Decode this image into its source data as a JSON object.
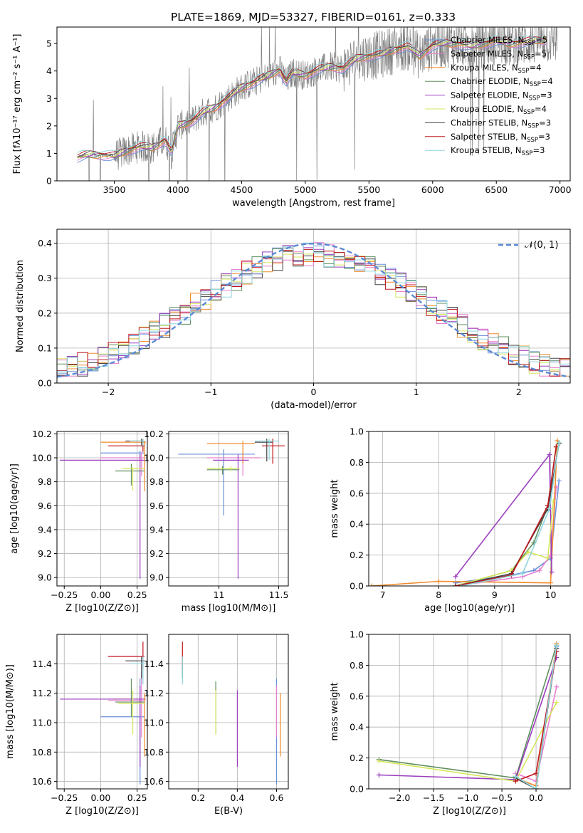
{
  "title": "PLATE=1869, MJD=53327, FIBERID=0161, z=0.333",
  "colors": {
    "chabrier_miles": "#6a8fd8",
    "salpeter_miles": "#e87fcf",
    "kroupa_miles": "#f08a2a",
    "chabrier_elodie": "#5f8f5f",
    "salpeter_elodie": "#9b3fbf",
    "kroupa_elodie": "#d6e65c",
    "chabrier_stelib": "#444444",
    "salpeter_stelib": "#c0161c",
    "kroupa_stelib": "#8fd6e0",
    "normal": "#5b8ad4",
    "data": "#808080"
  },
  "legend": {
    "spectrum": [
      {
        "key": "chabrier_miles",
        "label": "Chabrier MILES, N",
        "sub": "SSP",
        "suffix": "=5"
      },
      {
        "key": "salpeter_miles",
        "label": "Salpeter MILES, N",
        "sub": "SSP",
        "suffix": "=5"
      },
      {
        "key": "kroupa_miles",
        "label": "Kroupa MILES, N",
        "sub": "SSP",
        "suffix": "=4"
      },
      {
        "key": "chabrier_elodie",
        "label": "Chabrier ELODIE, N",
        "sub": "SSP",
        "suffix": "=4"
      },
      {
        "key": "salpeter_elodie",
        "label": "Salpeter ELODIE, N",
        "sub": "SSP",
        "suffix": "=3"
      },
      {
        "key": "kroupa_elodie",
        "label": "Kroupa ELODIE, N",
        "sub": "SSP",
        "suffix": "=4"
      },
      {
        "key": "chabrier_stelib",
        "label": "Chabrier STELIB, N",
        "sub": "SSP",
        "suffix": "=3"
      },
      {
        "key": "salpeter_stelib",
        "label": "Salpeter STELIB, N",
        "sub": "SSP",
        "suffix": "=3"
      },
      {
        "key": "kroupa_stelib",
        "label": "Kroupa STELIB, N",
        "sub": "SSP",
        "suffix": "=3"
      }
    ],
    "normal": "𝒩(0, 1)"
  },
  "chart_data": [
    {
      "type": "line",
      "panel": "spectrum",
      "xlabel": "wavelength [Angstrom, rest frame]",
      "ylabel": "Flux [fλ10⁻¹⁷ erg cm⁻² s⁻¹ A⁻¹]",
      "xlim": [
        3050,
        7080
      ],
      "ylim": [
        0,
        5.6
      ],
      "xticks": [
        3500,
        4000,
        4500,
        5000,
        5500,
        6000,
        6500,
        7000
      ],
      "yticks": [
        0,
        1,
        2,
        3,
        4,
        5
      ],
      "model_x": [
        3200,
        3300,
        3400,
        3500,
        3600,
        3700,
        3800,
        3900,
        3950,
        4000,
        4100,
        4200,
        4300,
        4400,
        4500,
        4600,
        4700,
        4800,
        4850,
        4900,
        5000,
        5100,
        5200,
        5300,
        5400,
        5500,
        5600,
        5700,
        5800,
        5900,
        6000,
        6100,
        6200,
        6300,
        6400,
        6500,
        6600,
        6700,
        6800,
        6900
      ],
      "model_y": [
        0.85,
        0.95,
        0.95,
        0.9,
        1.1,
        1.25,
        1.2,
        1.5,
        1.0,
        2.0,
        2.15,
        2.5,
        2.7,
        3.05,
        3.4,
        3.6,
        3.8,
        4.05,
        3.6,
        3.95,
        3.85,
        4.05,
        4.15,
        4.1,
        4.45,
        4.55,
        4.6,
        4.8,
        4.9,
        4.55,
        4.95,
        5.0,
        5.0,
        4.9,
        5.0,
        5.1,
        5.0,
        5.05,
        5.1,
        5.15
      ],
      "series": [
        {
          "name": "Chabrier MILES, N_SSP=5"
        },
        {
          "name": "Salpeter MILES, N_SSP=5"
        },
        {
          "name": "Kroupa MILES, N_SSP=4"
        },
        {
          "name": "Chabrier ELODIE, N_SSP=4"
        },
        {
          "name": "Salpeter ELODIE, N_SSP=3"
        },
        {
          "name": "Kroupa ELODIE, N_SSP=4"
        },
        {
          "name": "Chabrier STELIB, N_SSP=3"
        },
        {
          "name": "Salpeter STELIB, N_SSP=3"
        },
        {
          "name": "Kroupa STELIB, N_SSP=3"
        }
      ]
    },
    {
      "type": "line",
      "panel": "residuals",
      "xlabel": "(data-model)/error",
      "ylabel": "Normed distribution",
      "xlim": [
        -2.5,
        2.5
      ],
      "ylim": [
        0,
        0.44
      ],
      "xticks": [
        -2,
        -1,
        0,
        1,
        2
      ],
      "yticks": [
        0.0,
        0.1,
        0.2,
        0.3,
        0.4
      ]
    },
    {
      "type": "scatter",
      "panel": "age_vs_Z",
      "xlabel": "Z [log10(Z/Z⊙)]",
      "ylabel": "age [log10(age/yr)]",
      "xlim": [
        -0.3,
        0.32
      ],
      "ylim": [
        8.93,
        10.22
      ],
      "xticks": [
        -0.25,
        0.0,
        0.25
      ],
      "yticks": [
        9.0,
        9.2,
        9.4,
        9.6,
        9.8,
        10.0,
        10.2
      ],
      "points": [
        {
          "key": "chabrier_miles",
          "x": 0.27,
          "y": 10.04,
          "xl": 0.0,
          "xh": 0.3,
          "yl": 10.0,
          "yh": 10.06
        },
        {
          "key": "salpeter_miles",
          "x": 0.28,
          "y": 10.0,
          "xl": 0.0,
          "xh": 0.3,
          "yl": 9.85,
          "yh": 10.05
        },
        {
          "key": "kroupa_miles",
          "x": 0.3,
          "y": 10.13,
          "xl": 0.0,
          "xh": 0.31,
          "yl": 9.72,
          "yh": 10.14
        },
        {
          "key": "chabrier_elodie",
          "x": 0.21,
          "y": 9.89,
          "xl": 0.1,
          "xh": 0.3,
          "yl": 9.77,
          "yh": 9.95
        },
        {
          "key": "salpeter_elodie",
          "x": 0.27,
          "y": 9.98,
          "xl": -0.28,
          "xh": 0.3,
          "yl": 8.99,
          "yh": 10.03
        },
        {
          "key": "kroupa_elodie",
          "x": 0.22,
          "y": 9.91,
          "xl": 0.15,
          "xh": 0.3,
          "yl": 9.73,
          "yh": 9.92
        },
        {
          "key": "chabrier_stelib",
          "x": 0.28,
          "y": 10.14,
          "xl": 0.17,
          "xh": 0.3,
          "yl": 10.1,
          "yh": 10.16
        },
        {
          "key": "salpeter_stelib",
          "x": 0.29,
          "y": 10.1,
          "xl": 0.05,
          "xh": 0.3,
          "yl": 10.05,
          "yh": 10.16
        },
        {
          "key": "kroupa_stelib",
          "x": 0.29,
          "y": 10.14,
          "xl": 0.2,
          "xh": 0.3,
          "yl": 10.1,
          "yh": 10.16
        }
      ]
    },
    {
      "type": "scatter",
      "panel": "age_vs_mass",
      "xlabel": "mass [log10(M/M⊙)]",
      "ylabel": "",
      "xlim": [
        10.58,
        11.58
      ],
      "ylim": [
        8.93,
        10.22
      ],
      "xticks": [
        11.0,
        11.5
      ],
      "yticks": [
        9.0,
        9.2,
        9.4,
        9.6,
        9.8,
        10.0,
        10.2
      ],
      "points": [
        {
          "key": "chabrier_miles",
          "x": 11.04,
          "y": 10.03,
          "xl": 10.66,
          "xh": 11.3,
          "yl": 9.52,
          "yh": 10.07
        },
        {
          "key": "salpeter_miles",
          "x": 11.2,
          "y": 10.0,
          "xl": 10.9,
          "xh": 11.35,
          "yl": 9.85,
          "yh": 10.05
        },
        {
          "key": "kroupa_miles",
          "x": 11.2,
          "y": 10.12,
          "xl": 10.9,
          "xh": 11.3,
          "yl": 9.95,
          "yh": 10.14
        },
        {
          "key": "chabrier_elodie",
          "x": 11.03,
          "y": 9.9,
          "xl": 10.9,
          "xh": 11.17,
          "yl": 9.86,
          "yh": 9.93
        },
        {
          "key": "salpeter_elodie",
          "x": 11.16,
          "y": 9.98,
          "xl": 10.95,
          "xh": 11.25,
          "yl": 8.99,
          "yh": 10.03
        },
        {
          "key": "kroupa_elodie",
          "x": 11.1,
          "y": 9.91,
          "xl": 10.9,
          "xh": 11.17,
          "yl": 9.89,
          "yh": 9.93
        },
        {
          "key": "chabrier_stelib",
          "x": 11.4,
          "y": 10.13,
          "xl": 11.3,
          "xh": 11.45,
          "yl": 9.97,
          "yh": 10.16
        },
        {
          "key": "salpeter_stelib",
          "x": 11.45,
          "y": 10.1,
          "xl": 11.36,
          "xh": 11.55,
          "yl": 9.95,
          "yh": 10.16
        },
        {
          "key": "kroupa_stelib",
          "x": 11.42,
          "y": 10.14,
          "xl": 11.3,
          "xh": 11.5,
          "yl": 9.98,
          "yh": 10.16
        }
      ]
    },
    {
      "type": "line",
      "panel": "weight_vs_age",
      "xlabel": "age [log10(age/yr)]",
      "ylabel": "mass weight",
      "xlim": [
        6.75,
        10.35
      ],
      "ylim": [
        0,
        1.0
      ],
      "xticks": [
        7,
        8,
        9,
        10
      ],
      "yticks": [
        0.0,
        0.2,
        0.4,
        0.6,
        0.8,
        1.0
      ],
      "series": [
        {
          "key": "chabrier_miles",
          "x": [
            8.3,
            9.3,
            9.7,
            10.0,
            10.15
          ],
          "y": [
            0.02,
            0.07,
            0.1,
            0.18,
            0.68
          ]
        },
        {
          "key": "salpeter_miles",
          "x": [
            8.5,
            9.5,
            9.8,
            10.0,
            10.1
          ],
          "y": [
            0.01,
            0.06,
            0.1,
            0.2,
            0.64
          ]
        },
        {
          "key": "kroupa_miles",
          "x": [
            6.8,
            8.0,
            10.0,
            10.12,
            10.15
          ],
          "y": [
            0.0,
            0.03,
            0.02,
            0.94,
            0.92
          ]
        },
        {
          "key": "chabrier_elodie",
          "x": [
            8.3,
            9.3,
            9.7,
            9.95,
            10.1
          ],
          "y": [
            0.0,
            0.1,
            0.28,
            0.52,
            0.9
          ]
        },
        {
          "key": "salpeter_elodie",
          "x": [
            8.3,
            9.98,
            10.02
          ],
          "y": [
            0.06,
            0.85,
            0.09
          ]
        },
        {
          "key": "kroupa_elodie",
          "x": [
            8.4,
            9.3,
            9.6,
            9.95,
            10.05
          ],
          "y": [
            0.01,
            0.1,
            0.22,
            0.18,
            0.55
          ]
        },
        {
          "key": "chabrier_stelib",
          "x": [
            8.3,
            9.3,
            9.95,
            10.15
          ],
          "y": [
            0.0,
            0.08,
            0.5,
            0.92
          ]
        },
        {
          "key": "salpeter_stelib",
          "x": [
            8.3,
            9.3,
            9.95,
            10.1
          ],
          "y": [
            0.0,
            0.07,
            0.52,
            0.9
          ]
        },
        {
          "key": "kroupa_stelib",
          "x": [
            8.4,
            9.5,
            9.98,
            10.15
          ],
          "y": [
            0.0,
            0.08,
            0.5,
            0.93
          ]
        }
      ]
    },
    {
      "type": "scatter",
      "panel": "mass_vs_Z",
      "xlabel": "Z [log10(Z/Z⊙)]",
      "ylabel": "mass [log10(M/M⊙)]",
      "xlim": [
        -0.3,
        0.32
      ],
      "ylim": [
        10.55,
        11.6
      ],
      "xticks": [
        -0.25,
        0.0,
        0.25
      ],
      "yticks": [
        10.6,
        10.8,
        11.0,
        11.2,
        11.4
      ],
      "points": [
        {
          "key": "chabrier_miles",
          "x": 0.27,
          "y": 11.04,
          "xl": 0.0,
          "xh": 0.3,
          "yl": 10.58,
          "yh": 11.3
        },
        {
          "key": "salpeter_miles",
          "x": 0.28,
          "y": 11.15,
          "xl": 0.05,
          "xh": 0.3,
          "yl": 10.9,
          "yh": 11.35
        },
        {
          "key": "kroupa_miles",
          "x": 0.3,
          "y": 11.16,
          "xl": 0.05,
          "xh": 0.31,
          "yl": 10.77,
          "yh": 11.2
        },
        {
          "key": "chabrier_elodie",
          "x": 0.21,
          "y": 11.14,
          "xl": 0.1,
          "xh": 0.3,
          "yl": 11.04,
          "yh": 11.3
        },
        {
          "key": "salpeter_elodie",
          "x": 0.27,
          "y": 11.16,
          "xl": -0.28,
          "xh": 0.3,
          "yl": 10.7,
          "yh": 11.25
        },
        {
          "key": "kroupa_elodie",
          "x": 0.22,
          "y": 11.13,
          "xl": 0.12,
          "xh": 0.3,
          "yl": 10.92,
          "yh": 11.22
        },
        {
          "key": "chabrier_stelib",
          "x": 0.28,
          "y": 11.42,
          "xl": 0.17,
          "xh": 0.3,
          "yl": 11.3,
          "yh": 11.45
        },
        {
          "key": "salpeter_stelib",
          "x": 0.29,
          "y": 11.45,
          "xl": 0.05,
          "xh": 0.3,
          "yl": 11.36,
          "yh": 11.55
        },
        {
          "key": "kroupa_stelib",
          "x": 0.29,
          "y": 11.4,
          "xl": 0.2,
          "xh": 0.3,
          "yl": 11.26,
          "yh": 11.45
        }
      ]
    },
    {
      "type": "scatter",
      "panel": "mass_vs_ebv",
      "xlabel": "E(B-V)",
      "ylabel": "",
      "xlim": [
        0.05,
        0.66
      ],
      "ylim": [
        10.55,
        11.6
      ],
      "xticks": [
        0.2,
        0.4,
        0.6
      ],
      "yticks": [
        10.6,
        10.8,
        11.0,
        11.2,
        11.4
      ],
      "points": [
        {
          "key": "chabrier_miles",
          "x": 0.6,
          "y": 11.04,
          "yl": 10.58,
          "yh": 11.3
        },
        {
          "key": "salpeter_miles",
          "x": 0.6,
          "y": 11.15,
          "yl": 10.9,
          "yh": 11.25
        },
        {
          "key": "kroupa_miles",
          "x": 0.62,
          "y": 11.0,
          "yl": 10.77,
          "yh": 11.2
        },
        {
          "key": "chabrier_elodie",
          "x": 0.29,
          "y": 11.14,
          "yl": 10.92,
          "yh": 11.28
        },
        {
          "key": "salpeter_elodie",
          "x": 0.4,
          "y": 11.0,
          "yl": 10.7,
          "yh": 11.22
        },
        {
          "key": "kroupa_elodie",
          "x": 0.29,
          "y": 11.13,
          "yl": 10.92,
          "yh": 11.22
        },
        {
          "key": "chabrier_stelib",
          "x": 0.12,
          "y": 11.42,
          "yl": 11.3,
          "yh": 11.45
        },
        {
          "key": "salpeter_stelib",
          "x": 0.12,
          "y": 11.45,
          "yl": 11.36,
          "yh": 11.55
        },
        {
          "key": "kroupa_stelib",
          "x": 0.12,
          "y": 11.4,
          "yl": 11.26,
          "yh": 11.45
        }
      ]
    },
    {
      "type": "line",
      "panel": "weight_vs_Z",
      "xlabel": "Z [log10(Z/Z⊙)]",
      "ylabel": "mass weight",
      "xlim": [
        -2.45,
        0.5
      ],
      "ylim": [
        0,
        1.0
      ],
      "xticks": [
        -2.0,
        -1.5,
        -1.0,
        -0.5,
        0.0
      ],
      "yticks": [
        0.0,
        0.2,
        0.4,
        0.6,
        0.8,
        1.0
      ],
      "series": [
        {
          "key": "chabrier_miles",
          "x": [
            -0.3,
            0.0,
            0.3
          ],
          "y": [
            0.08,
            0.0,
            0.92
          ]
        },
        {
          "key": "salpeter_miles",
          "x": [
            -0.3,
            0.0,
            0.3
          ],
          "y": [
            0.1,
            0.05,
            0.66
          ]
        },
        {
          "key": "kroupa_miles",
          "x": [
            -0.3,
            0.0,
            0.3
          ],
          "y": [
            0.07,
            0.02,
            0.94
          ]
        },
        {
          "key": "chabrier_elodie",
          "x": [
            -2.3,
            -0.3,
            0.3
          ],
          "y": [
            0.19,
            0.07,
            0.93
          ]
        },
        {
          "key": "salpeter_elodie",
          "x": [
            -2.3,
            -0.3,
            0.3
          ],
          "y": [
            0.09,
            0.06,
            0.85
          ]
        },
        {
          "key": "kroupa_elodie",
          "x": [
            -2.3,
            -0.3,
            0.3
          ],
          "y": [
            0.18,
            0.05,
            0.56
          ]
        },
        {
          "key": "chabrier_stelib",
          "x": [
            -0.3,
            0.0,
            0.3
          ],
          "y": [
            0.07,
            0.0,
            0.91
          ]
        },
        {
          "key": "salpeter_stelib",
          "x": [
            -0.3,
            0.0,
            0.3
          ],
          "y": [
            0.05,
            0.1,
            0.89
          ]
        },
        {
          "key": "kroupa_stelib",
          "x": [
            -0.3,
            0.0,
            0.3
          ],
          "y": [
            0.08,
            0.0,
            0.93
          ]
        }
      ]
    }
  ]
}
